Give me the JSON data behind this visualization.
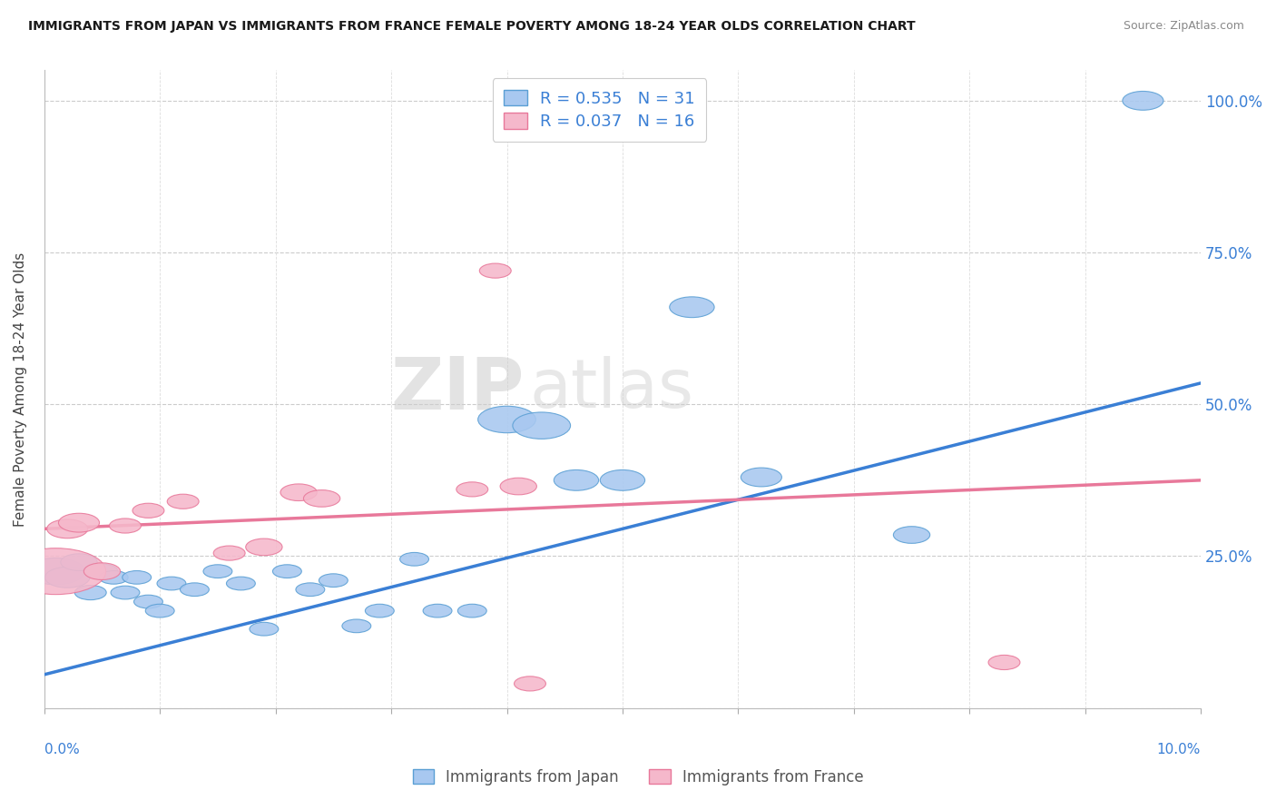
{
  "title": "IMMIGRANTS FROM JAPAN VS IMMIGRANTS FROM FRANCE FEMALE POVERTY AMONG 18-24 YEAR OLDS CORRELATION CHART",
  "source": "Source: ZipAtlas.com",
  "ylabel": "Female Poverty Among 18-24 Year Olds",
  "legend_japan": "R = 0.535   N = 31",
  "legend_france": "R = 0.037   N = 16",
  "legend_label_japan": "Immigrants from Japan",
  "legend_label_france": "Immigrants from France",
  "japan_color": "#a8c8f0",
  "france_color": "#f5b8cb",
  "japan_edge_color": "#5a9fd4",
  "france_edge_color": "#e8789a",
  "japan_line_color": "#3a7fd5",
  "france_line_color": "#e8789a",
  "background_color": "#ffffff",
  "watermark_zip": "ZIP",
  "watermark_atlas": "atlas",
  "japan_x": [
    0.001,
    0.002,
    0.003,
    0.004,
    0.005,
    0.006,
    0.007,
    0.008,
    0.009,
    0.01,
    0.011,
    0.013,
    0.015,
    0.017,
    0.019,
    0.021,
    0.023,
    0.025,
    0.027,
    0.029,
    0.032,
    0.034,
    0.037,
    0.04,
    0.043,
    0.046,
    0.05,
    0.056,
    0.062,
    0.075,
    0.095
  ],
  "japan_y": [
    0.225,
    0.215,
    0.24,
    0.19,
    0.225,
    0.215,
    0.19,
    0.215,
    0.175,
    0.16,
    0.205,
    0.195,
    0.225,
    0.205,
    0.13,
    0.225,
    0.195,
    0.21,
    0.135,
    0.16,
    0.245,
    0.16,
    0.16,
    0.475,
    0.465,
    0.375,
    0.375,
    0.66,
    0.38,
    0.285,
    1.0
  ],
  "japan_sizes": [
    200,
    120,
    80,
    60,
    60,
    50,
    50,
    50,
    50,
    50,
    50,
    50,
    50,
    50,
    50,
    50,
    50,
    50,
    50,
    50,
    50,
    50,
    50,
    200,
    200,
    120,
    120,
    120,
    100,
    80,
    100
  ],
  "france_x": [
    0.001,
    0.002,
    0.003,
    0.005,
    0.007,
    0.009,
    0.012,
    0.016,
    0.019,
    0.022,
    0.024,
    0.037,
    0.039,
    0.041,
    0.042,
    0.083
  ],
  "france_y": [
    0.225,
    0.295,
    0.305,
    0.225,
    0.3,
    0.325,
    0.34,
    0.255,
    0.265,
    0.355,
    0.345,
    0.36,
    0.72,
    0.365,
    0.04,
    0.075
  ],
  "france_sizes": [
    600,
    100,
    100,
    80,
    60,
    60,
    60,
    60,
    80,
    80,
    80,
    60,
    60,
    80,
    60,
    60
  ],
  "japan_trend_x": [
    0.0,
    0.1
  ],
  "japan_trend_y": [
    0.055,
    0.535
  ],
  "france_trend_x": [
    0.0,
    0.1
  ],
  "france_trend_y": [
    0.295,
    0.375
  ],
  "xlim": [
    0.0,
    0.1
  ],
  "ylim": [
    0.0,
    1.05
  ],
  "xticks": [
    0.0,
    0.01,
    0.02,
    0.03,
    0.04,
    0.05,
    0.06,
    0.07,
    0.08,
    0.09,
    0.1
  ],
  "yticks": [
    0.0,
    0.25,
    0.5,
    0.75,
    1.0
  ],
  "ytick_labels_right": [
    "25.0%",
    "50.0%",
    "75.0%",
    "100.0%"
  ],
  "ytick_right_vals": [
    0.25,
    0.5,
    0.75,
    1.0
  ]
}
